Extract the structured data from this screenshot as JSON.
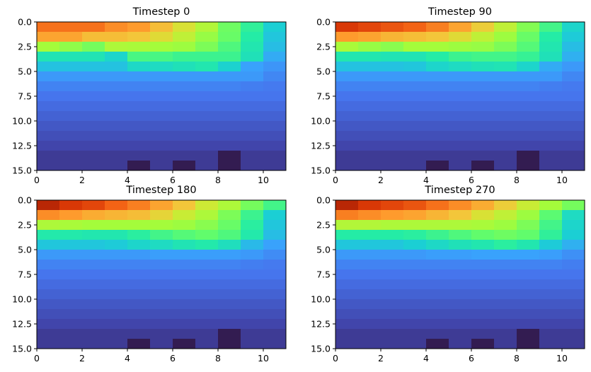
{
  "chart_data": [
    {
      "type": "heatmap",
      "title": "Timestep 0",
      "xlim": [
        0,
        11
      ],
      "ylim": [
        15,
        0
      ],
      "xticks": [
        "0",
        "2",
        "4",
        "6",
        "8",
        "10"
      ],
      "yticks": [
        "0.0",
        "2.5",
        "5.0",
        "7.5",
        "10.0",
        "12.5",
        "15.0"
      ],
      "values": [
        [
          0.93,
          0.93,
          0.93,
          0.91,
          0.9,
          0.86,
          0.81,
          0.73,
          0.62,
          0.52,
          0.4
        ],
        [
          0.89,
          0.89,
          0.86,
          0.86,
          0.85,
          0.82,
          0.76,
          0.68,
          0.61,
          0.5,
          0.38
        ],
        [
          0.7,
          0.67,
          0.63,
          0.72,
          0.71,
          0.7,
          0.69,
          0.64,
          0.57,
          0.48,
          0.36
        ],
        [
          0.47,
          0.47,
          0.47,
          0.42,
          0.56,
          0.56,
          0.54,
          0.54,
          0.54,
          0.46,
          0.32
        ],
        [
          0.37,
          0.37,
          0.37,
          0.37,
          0.43,
          0.44,
          0.46,
          0.48,
          0.41,
          0.3,
          0.27
        ],
        [
          0.28,
          0.28,
          0.28,
          0.28,
          0.28,
          0.28,
          0.28,
          0.28,
          0.28,
          0.28,
          0.24
        ],
        [
          0.23,
          0.23,
          0.23,
          0.23,
          0.23,
          0.23,
          0.23,
          0.23,
          0.23,
          0.22,
          0.21
        ],
        [
          0.2,
          0.2,
          0.2,
          0.2,
          0.2,
          0.2,
          0.2,
          0.2,
          0.2,
          0.2,
          0.2
        ],
        [
          0.18,
          0.18,
          0.18,
          0.18,
          0.18,
          0.18,
          0.18,
          0.18,
          0.18,
          0.18,
          0.18
        ],
        [
          0.16,
          0.16,
          0.16,
          0.16,
          0.16,
          0.16,
          0.16,
          0.16,
          0.16,
          0.16,
          0.16
        ],
        [
          0.14,
          0.14,
          0.14,
          0.14,
          0.14,
          0.14,
          0.14,
          0.14,
          0.14,
          0.14,
          0.14
        ],
        [
          0.12,
          0.12,
          0.12,
          0.12,
          0.12,
          0.12,
          0.12,
          0.12,
          0.12,
          0.12,
          0.12
        ],
        [
          0.1,
          0.1,
          0.1,
          0.1,
          0.1,
          0.1,
          0.1,
          0.1,
          0.1,
          0.1,
          0.1
        ],
        [
          0.08,
          0.08,
          0.08,
          0.08,
          0.08,
          0.08,
          0.08,
          0.08,
          0.02,
          0.08,
          0.08
        ],
        [
          0.08,
          0.08,
          0.08,
          0.08,
          0.02,
          0.08,
          0.02,
          0.08,
          0.02,
          0.08,
          0.08
        ]
      ]
    },
    {
      "type": "heatmap",
      "title": "Timestep 90",
      "xlim": [
        0,
        11
      ],
      "ylim": [
        15,
        0
      ],
      "xticks": [
        "0",
        "2",
        "4",
        "6",
        "8",
        "10"
      ],
      "yticks": [
        "0.0",
        "2.5",
        "5.0",
        "7.5",
        "10.0",
        "12.5",
        "15.0"
      ],
      "values": [
        [
          0.97,
          0.96,
          0.95,
          0.94,
          0.92,
          0.89,
          0.84,
          0.76,
          0.65,
          0.55,
          0.42
        ],
        [
          0.9,
          0.89,
          0.87,
          0.86,
          0.85,
          0.82,
          0.76,
          0.69,
          0.61,
          0.5,
          0.39
        ],
        [
          0.71,
          0.68,
          0.66,
          0.7,
          0.7,
          0.69,
          0.68,
          0.64,
          0.58,
          0.48,
          0.36
        ],
        [
          0.48,
          0.48,
          0.47,
          0.47,
          0.5,
          0.54,
          0.55,
          0.55,
          0.53,
          0.46,
          0.33
        ],
        [
          0.37,
          0.37,
          0.37,
          0.38,
          0.42,
          0.44,
          0.46,
          0.47,
          0.42,
          0.32,
          0.28
        ],
        [
          0.28,
          0.28,
          0.28,
          0.28,
          0.28,
          0.28,
          0.28,
          0.28,
          0.28,
          0.28,
          0.24
        ],
        [
          0.23,
          0.23,
          0.23,
          0.23,
          0.23,
          0.23,
          0.23,
          0.23,
          0.23,
          0.22,
          0.21
        ],
        [
          0.2,
          0.2,
          0.2,
          0.2,
          0.2,
          0.2,
          0.2,
          0.2,
          0.2,
          0.2,
          0.2
        ],
        [
          0.18,
          0.18,
          0.18,
          0.18,
          0.18,
          0.18,
          0.18,
          0.18,
          0.18,
          0.18,
          0.18
        ],
        [
          0.16,
          0.16,
          0.16,
          0.16,
          0.16,
          0.16,
          0.16,
          0.16,
          0.16,
          0.16,
          0.16
        ],
        [
          0.14,
          0.14,
          0.14,
          0.14,
          0.14,
          0.14,
          0.14,
          0.14,
          0.14,
          0.14,
          0.14
        ],
        [
          0.12,
          0.12,
          0.12,
          0.12,
          0.12,
          0.12,
          0.12,
          0.12,
          0.12,
          0.12,
          0.12
        ],
        [
          0.1,
          0.1,
          0.1,
          0.1,
          0.1,
          0.1,
          0.1,
          0.1,
          0.1,
          0.1,
          0.1
        ],
        [
          0.08,
          0.08,
          0.08,
          0.08,
          0.08,
          0.08,
          0.08,
          0.08,
          0.02,
          0.08,
          0.08
        ],
        [
          0.08,
          0.08,
          0.08,
          0.08,
          0.02,
          0.08,
          0.02,
          0.08,
          0.02,
          0.08,
          0.08
        ]
      ]
    },
    {
      "type": "heatmap",
      "title": "Timestep 180",
      "xlim": [
        0,
        11
      ],
      "ylim": [
        15,
        0
      ],
      "xticks": [
        "0",
        "2",
        "4",
        "6",
        "8",
        "10"
      ],
      "yticks": [
        "0.0",
        "2.5",
        "5.0",
        "7.5",
        "10.0",
        "12.5",
        "15.0"
      ],
      "values": [
        [
          0.98,
          0.97,
          0.96,
          0.94,
          0.92,
          0.89,
          0.85,
          0.79,
          0.72,
          0.63,
          0.55
        ],
        [
          0.91,
          0.9,
          0.88,
          0.87,
          0.86,
          0.83,
          0.78,
          0.72,
          0.64,
          0.54,
          0.4
        ],
        [
          0.72,
          0.71,
          0.7,
          0.7,
          0.7,
          0.7,
          0.69,
          0.66,
          0.61,
          0.51,
          0.38
        ],
        [
          0.49,
          0.49,
          0.48,
          0.48,
          0.51,
          0.55,
          0.58,
          0.6,
          0.57,
          0.49,
          0.36
        ],
        [
          0.38,
          0.38,
          0.38,
          0.39,
          0.42,
          0.44,
          0.47,
          0.49,
          0.45,
          0.35,
          0.3
        ],
        [
          0.28,
          0.28,
          0.28,
          0.28,
          0.28,
          0.29,
          0.29,
          0.29,
          0.29,
          0.28,
          0.25
        ],
        [
          0.23,
          0.23,
          0.23,
          0.23,
          0.23,
          0.23,
          0.23,
          0.23,
          0.23,
          0.22,
          0.21
        ],
        [
          0.2,
          0.2,
          0.2,
          0.2,
          0.2,
          0.2,
          0.2,
          0.2,
          0.2,
          0.2,
          0.2
        ],
        [
          0.18,
          0.18,
          0.18,
          0.18,
          0.18,
          0.18,
          0.18,
          0.18,
          0.18,
          0.18,
          0.18
        ],
        [
          0.16,
          0.16,
          0.16,
          0.16,
          0.16,
          0.16,
          0.16,
          0.16,
          0.16,
          0.16,
          0.16
        ],
        [
          0.14,
          0.14,
          0.14,
          0.14,
          0.14,
          0.14,
          0.14,
          0.14,
          0.14,
          0.14,
          0.14
        ],
        [
          0.12,
          0.12,
          0.12,
          0.12,
          0.12,
          0.12,
          0.12,
          0.12,
          0.12,
          0.12,
          0.12
        ],
        [
          0.1,
          0.1,
          0.1,
          0.1,
          0.1,
          0.1,
          0.1,
          0.1,
          0.1,
          0.1,
          0.1
        ],
        [
          0.08,
          0.08,
          0.08,
          0.08,
          0.08,
          0.08,
          0.08,
          0.08,
          0.02,
          0.08,
          0.08
        ],
        [
          0.08,
          0.08,
          0.08,
          0.08,
          0.02,
          0.08,
          0.02,
          0.08,
          0.02,
          0.08,
          0.08
        ]
      ]
    },
    {
      "type": "heatmap",
      "title": "Timestep 270",
      "xlim": [
        0,
        11
      ],
      "ylim": [
        15,
        0
      ],
      "xticks": [
        "0",
        "2",
        "4",
        "6",
        "8",
        "10"
      ],
      "yticks": [
        "0.0",
        "2.5",
        "5.0",
        "7.5",
        "10.0",
        "12.5",
        "15.0"
      ],
      "values": [
        [
          0.98,
          0.97,
          0.96,
          0.95,
          0.93,
          0.91,
          0.88,
          0.84,
          0.78,
          0.7,
          0.63
        ],
        [
          0.92,
          0.91,
          0.9,
          0.89,
          0.87,
          0.85,
          0.81,
          0.76,
          0.69,
          0.59,
          0.44
        ],
        [
          0.73,
          0.73,
          0.72,
          0.72,
          0.72,
          0.72,
          0.71,
          0.69,
          0.64,
          0.55,
          0.42
        ],
        [
          0.5,
          0.5,
          0.5,
          0.51,
          0.54,
          0.57,
          0.6,
          0.62,
          0.6,
          0.52,
          0.4
        ],
        [
          0.38,
          0.38,
          0.38,
          0.4,
          0.43,
          0.46,
          0.48,
          0.51,
          0.48,
          0.39,
          0.33
        ],
        [
          0.28,
          0.28,
          0.28,
          0.28,
          0.29,
          0.29,
          0.3,
          0.3,
          0.3,
          0.29,
          0.26
        ],
        [
          0.23,
          0.23,
          0.23,
          0.23,
          0.23,
          0.23,
          0.23,
          0.23,
          0.23,
          0.23,
          0.22
        ],
        [
          0.2,
          0.2,
          0.2,
          0.2,
          0.2,
          0.2,
          0.2,
          0.2,
          0.2,
          0.2,
          0.2
        ],
        [
          0.18,
          0.18,
          0.18,
          0.18,
          0.18,
          0.18,
          0.18,
          0.18,
          0.18,
          0.18,
          0.18
        ],
        [
          0.16,
          0.16,
          0.16,
          0.16,
          0.16,
          0.16,
          0.16,
          0.16,
          0.16,
          0.16,
          0.16
        ],
        [
          0.14,
          0.14,
          0.14,
          0.14,
          0.14,
          0.14,
          0.14,
          0.14,
          0.14,
          0.14,
          0.14
        ],
        [
          0.12,
          0.12,
          0.12,
          0.12,
          0.12,
          0.12,
          0.12,
          0.12,
          0.12,
          0.12,
          0.12
        ],
        [
          0.1,
          0.1,
          0.1,
          0.1,
          0.1,
          0.1,
          0.1,
          0.1,
          0.1,
          0.1,
          0.1
        ],
        [
          0.08,
          0.08,
          0.08,
          0.08,
          0.08,
          0.08,
          0.08,
          0.08,
          0.02,
          0.08,
          0.08
        ],
        [
          0.08,
          0.08,
          0.08,
          0.08,
          0.02,
          0.08,
          0.02,
          0.08,
          0.02,
          0.08,
          0.08
        ]
      ]
    }
  ]
}
